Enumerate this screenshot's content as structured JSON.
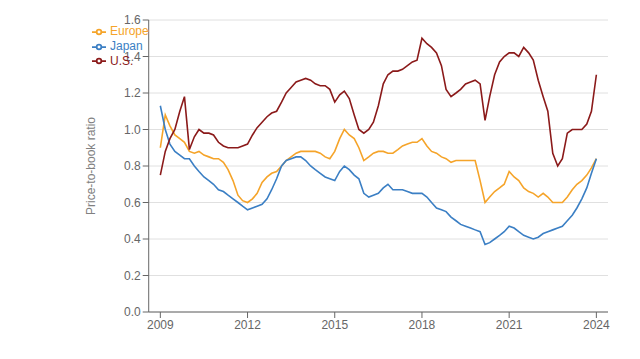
{
  "chart_data": {
    "type": "line",
    "ylabel": "Price-to-book ratio",
    "x": [
      2009.0,
      2009.17,
      2009.33,
      2009.5,
      2009.67,
      2009.83,
      2010.0,
      2010.17,
      2010.33,
      2010.5,
      2010.67,
      2010.83,
      2011.0,
      2011.17,
      2011.33,
      2011.5,
      2011.67,
      2011.83,
      2012.0,
      2012.17,
      2012.33,
      2012.5,
      2012.67,
      2012.83,
      2013.0,
      2013.17,
      2013.33,
      2013.5,
      2013.67,
      2013.83,
      2014.0,
      2014.17,
      2014.33,
      2014.5,
      2014.67,
      2014.83,
      2015.0,
      2015.17,
      2015.33,
      2015.5,
      2015.67,
      2015.83,
      2016.0,
      2016.17,
      2016.33,
      2016.5,
      2016.67,
      2016.83,
      2017.0,
      2017.17,
      2017.33,
      2017.5,
      2017.67,
      2017.83,
      2018.0,
      2018.17,
      2018.33,
      2018.5,
      2018.67,
      2018.83,
      2019.0,
      2019.17,
      2019.33,
      2019.5,
      2019.67,
      2019.83,
      2020.0,
      2020.17,
      2020.33,
      2020.5,
      2020.67,
      2020.83,
      2021.0,
      2021.17,
      2021.33,
      2021.5,
      2021.67,
      2021.83,
      2022.0,
      2022.17,
      2022.33,
      2022.5,
      2022.67,
      2022.83,
      2023.0,
      2023.17,
      2023.33,
      2023.5,
      2023.67,
      2023.83,
      2024.0
    ],
    "series": [
      {
        "name": "Europe",
        "color": "#F5A42A",
        "values": [
          0.9,
          1.08,
          1.02,
          0.97,
          0.95,
          0.93,
          0.88,
          0.87,
          0.88,
          0.86,
          0.85,
          0.84,
          0.84,
          0.82,
          0.78,
          0.72,
          0.64,
          0.61,
          0.6,
          0.62,
          0.65,
          0.71,
          0.74,
          0.76,
          0.77,
          0.8,
          0.83,
          0.85,
          0.87,
          0.88,
          0.88,
          0.88,
          0.88,
          0.87,
          0.85,
          0.84,
          0.88,
          0.95,
          1.0,
          0.97,
          0.95,
          0.9,
          0.83,
          0.85,
          0.87,
          0.88,
          0.88,
          0.87,
          0.87,
          0.89,
          0.91,
          0.92,
          0.93,
          0.93,
          0.95,
          0.91,
          0.88,
          0.87,
          0.85,
          0.84,
          0.82,
          0.83,
          0.83,
          0.83,
          0.83,
          0.83,
          0.72,
          0.6,
          0.63,
          0.66,
          0.68,
          0.7,
          0.77,
          0.74,
          0.72,
          0.68,
          0.66,
          0.65,
          0.63,
          0.65,
          0.63,
          0.6,
          0.6,
          0.6,
          0.63,
          0.67,
          0.7,
          0.72,
          0.75,
          0.79,
          0.84
        ]
      },
      {
        "name": "Japan",
        "color": "#3B7FC4",
        "values": [
          1.13,
          1.0,
          0.92,
          0.88,
          0.86,
          0.84,
          0.84,
          0.8,
          0.77,
          0.74,
          0.72,
          0.7,
          0.67,
          0.66,
          0.64,
          0.62,
          0.6,
          0.58,
          0.56,
          0.57,
          0.58,
          0.59,
          0.62,
          0.67,
          0.73,
          0.8,
          0.83,
          0.84,
          0.85,
          0.85,
          0.83,
          0.8,
          0.78,
          0.76,
          0.74,
          0.73,
          0.72,
          0.77,
          0.8,
          0.78,
          0.75,
          0.73,
          0.65,
          0.63,
          0.64,
          0.65,
          0.68,
          0.7,
          0.67,
          0.67,
          0.67,
          0.66,
          0.65,
          0.65,
          0.65,
          0.63,
          0.6,
          0.57,
          0.56,
          0.55,
          0.52,
          0.5,
          0.48,
          0.47,
          0.46,
          0.45,
          0.44,
          0.37,
          0.38,
          0.4,
          0.42,
          0.44,
          0.47,
          0.46,
          0.44,
          0.42,
          0.41,
          0.4,
          0.41,
          0.43,
          0.44,
          0.45,
          0.46,
          0.47,
          0.5,
          0.53,
          0.57,
          0.62,
          0.68,
          0.76,
          0.84
        ]
      },
      {
        "name": "U.S.",
        "color": "#8B1A1A",
        "values": [
          0.75,
          0.88,
          0.95,
          1.0,
          1.1,
          1.18,
          0.89,
          0.96,
          1.0,
          0.98,
          0.98,
          0.97,
          0.93,
          0.91,
          0.9,
          0.9,
          0.9,
          0.91,
          0.92,
          0.97,
          1.01,
          1.04,
          1.07,
          1.09,
          1.1,
          1.15,
          1.2,
          1.23,
          1.26,
          1.27,
          1.28,
          1.27,
          1.25,
          1.24,
          1.24,
          1.22,
          1.15,
          1.19,
          1.21,
          1.17,
          1.08,
          1.0,
          0.98,
          1.0,
          1.04,
          1.13,
          1.25,
          1.3,
          1.32,
          1.32,
          1.33,
          1.35,
          1.37,
          1.38,
          1.5,
          1.47,
          1.45,
          1.42,
          1.35,
          1.22,
          1.18,
          1.2,
          1.22,
          1.25,
          1.26,
          1.27,
          1.25,
          1.05,
          1.18,
          1.3,
          1.37,
          1.4,
          1.42,
          1.42,
          1.4,
          1.45,
          1.42,
          1.38,
          1.27,
          1.18,
          1.1,
          0.87,
          0.8,
          0.84,
          0.98,
          1.0,
          1.0,
          1.0,
          1.03,
          1.1,
          1.3
        ]
      }
    ],
    "xlim": [
      2008.6,
      2024.4
    ],
    "xticks": [
      2009,
      2012,
      2015,
      2018,
      2021,
      2024
    ],
    "ylim": [
      0,
      1.6
    ],
    "yticks": [
      {
        "value": 0,
        "label": "0.0"
      },
      0.2,
      0.4,
      0.6,
      0.8,
      {
        "value": 1,
        "label": "1.0"
      },
      1.2,
      1.4,
      1.6
    ],
    "grid": true,
    "legend": "upper left"
  }
}
